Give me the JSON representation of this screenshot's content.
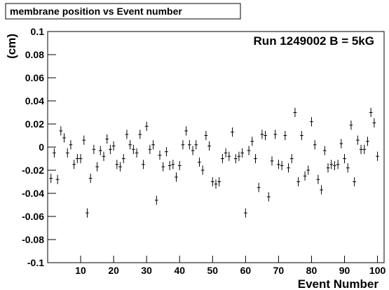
{
  "chart_data": {
    "type": "errorbar",
    "title": "membrane position vs Event number",
    "annotation": "Run 1249002 B = 5kG",
    "x_label": "Event Number",
    "y_label": "(cm)",
    "x": [
      1,
      2,
      3,
      4,
      5,
      6,
      7,
      8,
      9,
      10,
      11,
      12,
      13,
      14,
      15,
      16,
      17,
      18,
      19,
      20,
      21,
      22,
      23,
      24,
      25,
      26,
      27,
      28,
      29,
      30,
      31,
      32,
      33,
      34,
      35,
      36,
      37,
      38,
      39,
      40,
      41,
      42,
      43,
      44,
      45,
      46,
      47,
      48,
      49,
      50,
      51,
      52,
      53,
      54,
      55,
      56,
      57,
      58,
      59,
      60,
      61,
      62,
      63,
      64,
      65,
      66,
      67,
      68,
      69,
      70,
      71,
      72,
      73,
      74,
      75,
      76,
      77,
      78,
      79,
      80,
      81,
      82,
      83,
      84,
      85,
      86,
      87,
      88,
      89,
      90,
      91,
      92,
      93,
      94,
      95,
      96,
      97,
      98,
      99,
      100
    ],
    "values": [
      -0.027,
      -0.005,
      -0.028,
      0.014,
      0.008,
      -0.005,
      0.002,
      -0.015,
      -0.01,
      -0.01,
      0.006,
      -0.057,
      -0.027,
      -0.002,
      -0.017,
      -0.003,
      -0.008,
      0.007,
      -0.002,
      0.001,
      -0.015,
      -0.017,
      -0.01,
      0.011,
      0.002,
      -0.002,
      -0.005,
      0.011,
      -0.015,
      0.018,
      -0.002,
      0.002,
      -0.046,
      -0.007,
      -0.017,
      -0.004,
      -0.016,
      -0.015,
      -0.026,
      -0.016,
      0.002,
      0.014,
      0.002,
      -0.003,
      0.002,
      -0.013,
      -0.02,
      0.01,
      0.001,
      -0.03,
      -0.032,
      -0.03,
      -0.01,
      -0.005,
      -0.008,
      0.013,
      -0.01,
      -0.008,
      -0.005,
      -0.057,
      -0.003,
      0.005,
      -0.01,
      -0.035,
      0.011,
      0.01,
      -0.043,
      -0.012,
      0.011,
      -0.015,
      -0.016,
      0.01,
      -0.018,
      -0.01,
      0.03,
      -0.03,
      0.01,
      -0.025,
      -0.02,
      0.022,
      0.002,
      -0.028,
      -0.037,
      -0.003,
      -0.018,
      -0.015,
      -0.016,
      -0.015,
      0.003,
      -0.01,
      -0.018,
      0.019,
      -0.03,
      0.006,
      -0.002,
      -0.002,
      0.005,
      0.03,
      0.021,
      -0.008
    ],
    "yerr": 0.004,
    "xerr": 0.5,
    "color": "#000000",
    "xlim": [
      0,
      102
    ],
    "ylim": [
      -0.1,
      0.1
    ],
    "xticks": [
      10,
      20,
      30,
      40,
      50,
      60,
      70,
      80,
      90,
      100
    ],
    "yticks": [
      -0.1,
      -0.08,
      -0.06,
      -0.04,
      -0.02,
      0,
      0.02,
      0.04,
      0.06,
      0.08,
      0.1
    ]
  }
}
